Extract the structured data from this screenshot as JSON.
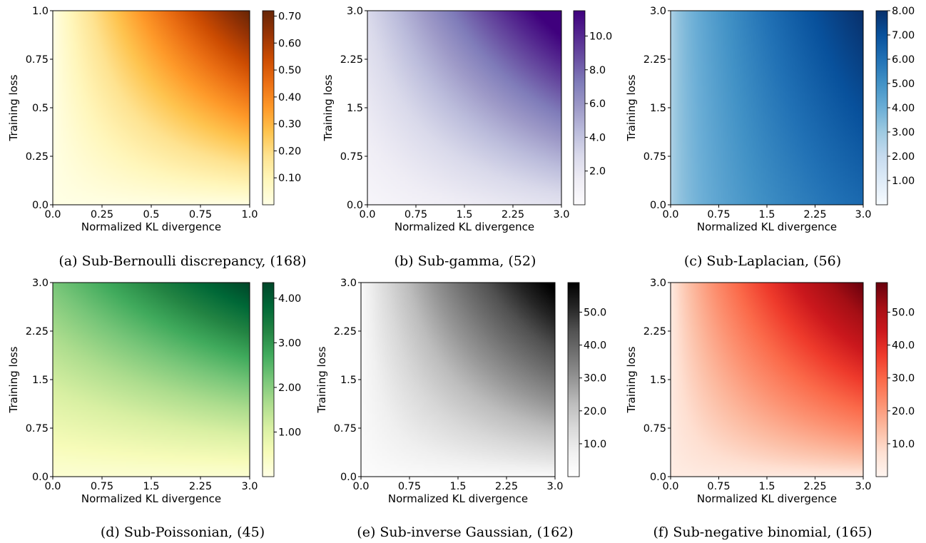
{
  "chart_data": [
    {
      "type": "heatmap",
      "caption": "(a) Sub-Bernoulli discrepancy, (168)",
      "xlabel": "Normalized KL divergence",
      "ylabel": "Training loss",
      "xlim": [
        0,
        1
      ],
      "ylim": [
        0,
        1
      ],
      "xticks": [
        "0.0",
        "0.25",
        "0.5",
        "0.75",
        "1.0"
      ],
      "yticks": [
        "0.0",
        "0.25",
        "0.5",
        "0.75",
        "1.0"
      ],
      "colormap": [
        "#ffffe5",
        "#fff7bc",
        "#fee391",
        "#fec44f",
        "#fe9929",
        "#ec7014",
        "#cc4c02",
        "#993404",
        "#662506"
      ],
      "colorbar": {
        "min": 0.0,
        "max": 0.72,
        "ticks": [
          0.1,
          0.2,
          0.3,
          0.4,
          0.5,
          0.6,
          0.7
        ],
        "labels": [
          "0.10",
          "0.20",
          "0.30",
          "0.40",
          "0.50",
          "0.60",
          "0.70"
        ]
      },
      "grid": false
    },
    {
      "type": "heatmap",
      "caption": "(b) Sub-gamma, (52)",
      "xlabel": "Normalized KL divergence",
      "ylabel": "Training loss",
      "xlim": [
        0,
        3
      ],
      "ylim": [
        0,
        3
      ],
      "xticks": [
        "0.0",
        "0.75",
        "1.5",
        "2.25",
        "3.0"
      ],
      "yticks": [
        "0.0",
        "0.75",
        "1.5",
        "2.25",
        "3.0"
      ],
      "colormap": [
        "#fcfbfd",
        "#efedf5",
        "#dadaeb",
        "#bcbddc",
        "#9e9ac8",
        "#807dba",
        "#6a51a3",
        "#54278f",
        "#3f007d"
      ],
      "colorbar": {
        "min": 0.0,
        "max": 11.5,
        "ticks": [
          2,
          4,
          6,
          8,
          10
        ],
        "labels": [
          "2.0",
          "4.0",
          "6.0",
          "8.0",
          "10.0"
        ]
      },
      "grid": false
    },
    {
      "type": "heatmap",
      "caption": "(c) Sub-Laplacian, (56)",
      "xlabel": "Normalized KL divergence",
      "ylabel": "Training loss",
      "xlim": [
        0,
        3
      ],
      "ylim": [
        0,
        3
      ],
      "xticks": [
        "0.0",
        "0.75",
        "1.5",
        "2.25",
        "3.0"
      ],
      "yticks": [
        "0.0",
        "0.75",
        "1.5",
        "2.25",
        "3.0"
      ],
      "colormap": [
        "#f7fbff",
        "#deebf7",
        "#c6dbef",
        "#9ecae1",
        "#6baed6",
        "#4292c6",
        "#2171b5",
        "#08519c",
        "#08306b"
      ],
      "colorbar": {
        "min": 0.0,
        "max": 8.0,
        "ticks": [
          1,
          2,
          3,
          4,
          5,
          6,
          7,
          8
        ],
        "labels": [
          "1.00",
          "2.00",
          "3.00",
          "4.00",
          "5.00",
          "6.00",
          "7.00",
          "8.00"
        ]
      },
      "grid": false
    },
    {
      "type": "heatmap",
      "caption": "(d) Sub-Poissonian, (45)",
      "xlabel": "Normalized KL divergence",
      "ylabel": "Training loss",
      "xlim": [
        0,
        3
      ],
      "ylim": [
        0,
        3
      ],
      "xticks": [
        "0.0",
        "0.75",
        "1.5",
        "2.25",
        "3.0"
      ],
      "yticks": [
        "0.0",
        "0.75",
        "1.5",
        "2.25",
        "3.0"
      ],
      "colormap": [
        "#ffffe5",
        "#f7fcb9",
        "#d9f0a3",
        "#addd8e",
        "#78c679",
        "#41ab5d",
        "#238443",
        "#006837",
        "#004529"
      ],
      "colorbar": {
        "min": 0.0,
        "max": 4.35,
        "ticks": [
          1,
          2,
          3,
          4
        ],
        "labels": [
          "1.00",
          "2.00",
          "3.00",
          "4.00"
        ]
      },
      "grid": false
    },
    {
      "type": "heatmap",
      "caption": "(e) Sub-inverse Gaussian, (162)",
      "xlabel": "Normalized KL divergence",
      "ylabel": "Training loss",
      "xlim": [
        0,
        3
      ],
      "ylim": [
        0,
        3
      ],
      "xticks": [
        "0.0",
        "0.75",
        "1.5",
        "2.25",
        "3.0"
      ],
      "yticks": [
        "0.0",
        "0.75",
        "1.5",
        "2.25",
        "3.0"
      ],
      "colormap": [
        "#ffffff",
        "#f0f0f0",
        "#d9d9d9",
        "#bdbdbd",
        "#969696",
        "#737373",
        "#525252",
        "#252525",
        "#000000"
      ],
      "colorbar": {
        "min": 0.0,
        "max": 59.0,
        "ticks": [
          10,
          20,
          30,
          40,
          50
        ],
        "labels": [
          "10.0",
          "20.0",
          "30.0",
          "40.0",
          "50.0"
        ]
      },
      "grid": false
    },
    {
      "type": "heatmap",
      "caption": "(f) Sub-negative binomial, (165)",
      "xlabel": "Normalized KL divergence",
      "ylabel": "Training loss",
      "xlim": [
        0,
        3
      ],
      "ylim": [
        0,
        3
      ],
      "xticks": [
        "0.0",
        "0.75",
        "1.5",
        "2.25",
        "3.0"
      ],
      "yticks": [
        "0.0",
        "0.75",
        "1.5",
        "2.25",
        "3.0"
      ],
      "colormap": [
        "#fff5f0",
        "#fee0d2",
        "#fcbba1",
        "#fc9272",
        "#fb6a4a",
        "#ef3b2c",
        "#cb181d",
        "#a50f15",
        "#67000d"
      ],
      "colorbar": {
        "min": 0.0,
        "max": 59.0,
        "ticks": [
          10,
          20,
          30,
          40,
          50
        ],
        "labels": [
          "10.0",
          "20.0",
          "30.0",
          "40.0",
          "50.0"
        ]
      },
      "grid": false
    }
  ]
}
